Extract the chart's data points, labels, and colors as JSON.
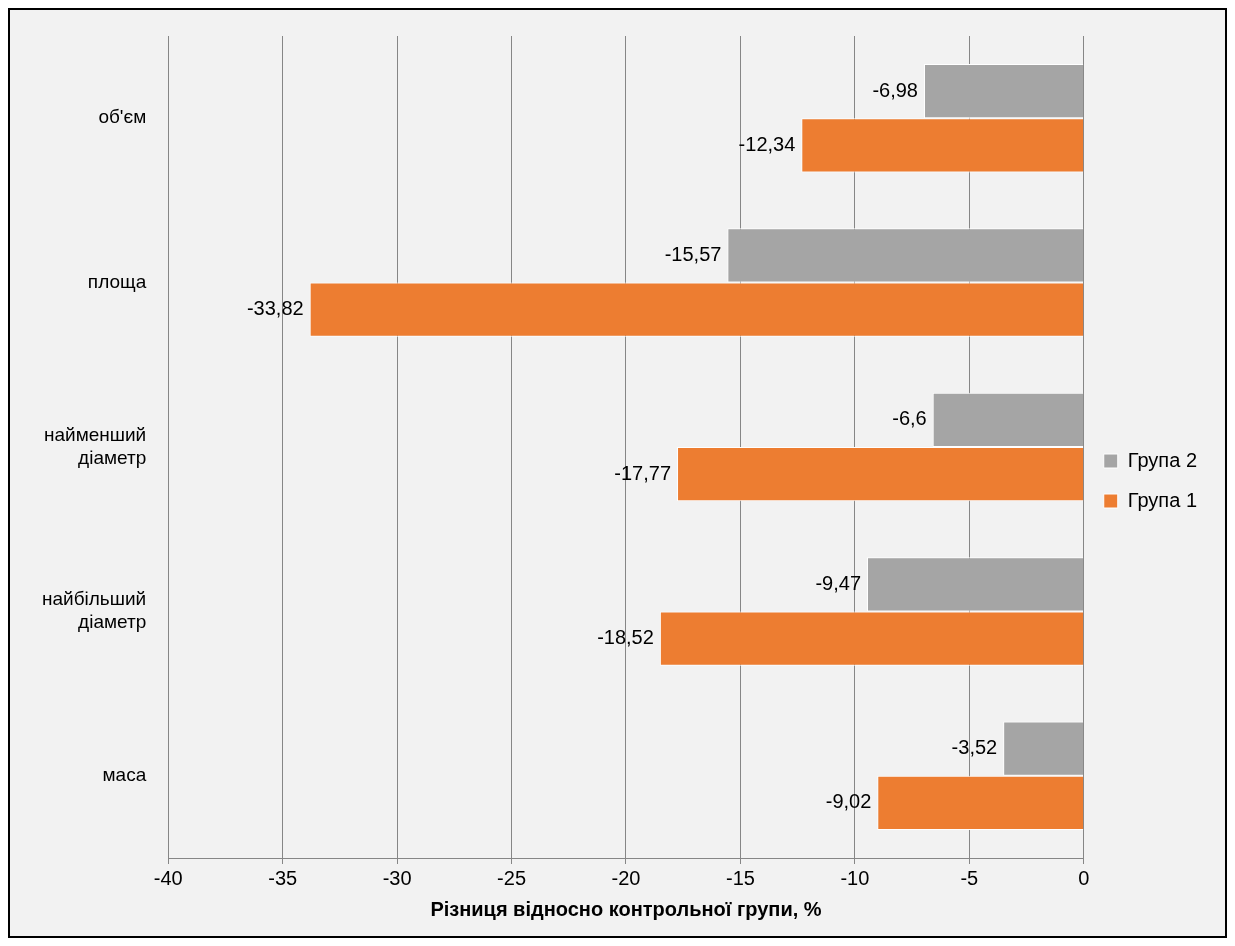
{
  "chart_data": {
    "type": "bar",
    "orientation": "horizontal",
    "xlabel": "Різниця відносно контрольної групи, %",
    "categories": [
      "об'єм",
      "площа",
      "найменший діаметр",
      "найбільший діаметр",
      "маса"
    ],
    "series": [
      {
        "name": "Група 2",
        "color": "#a5a5a5",
        "values": [
          -6.98,
          -15.57,
          -6.6,
          -9.47,
          -3.52
        ],
        "value_labels": [
          "-6,98",
          "-15,57",
          "-6,6",
          "-9,47",
          "-3,52"
        ]
      },
      {
        "name": "Група 1",
        "color": "#ed7d31",
        "values": [
          -12.34,
          -33.82,
          -17.77,
          -18.52,
          -9.02
        ],
        "value_labels": [
          "-12,34",
          "-33,82",
          "-17,77",
          "-18,52",
          "-9,02"
        ]
      }
    ],
    "xlim": [
      -40,
      0
    ],
    "xticks": [
      -40,
      -35,
      -30,
      -25,
      -20,
      -15,
      -10,
      -5,
      0
    ],
    "grid": "x",
    "legend": "right"
  }
}
